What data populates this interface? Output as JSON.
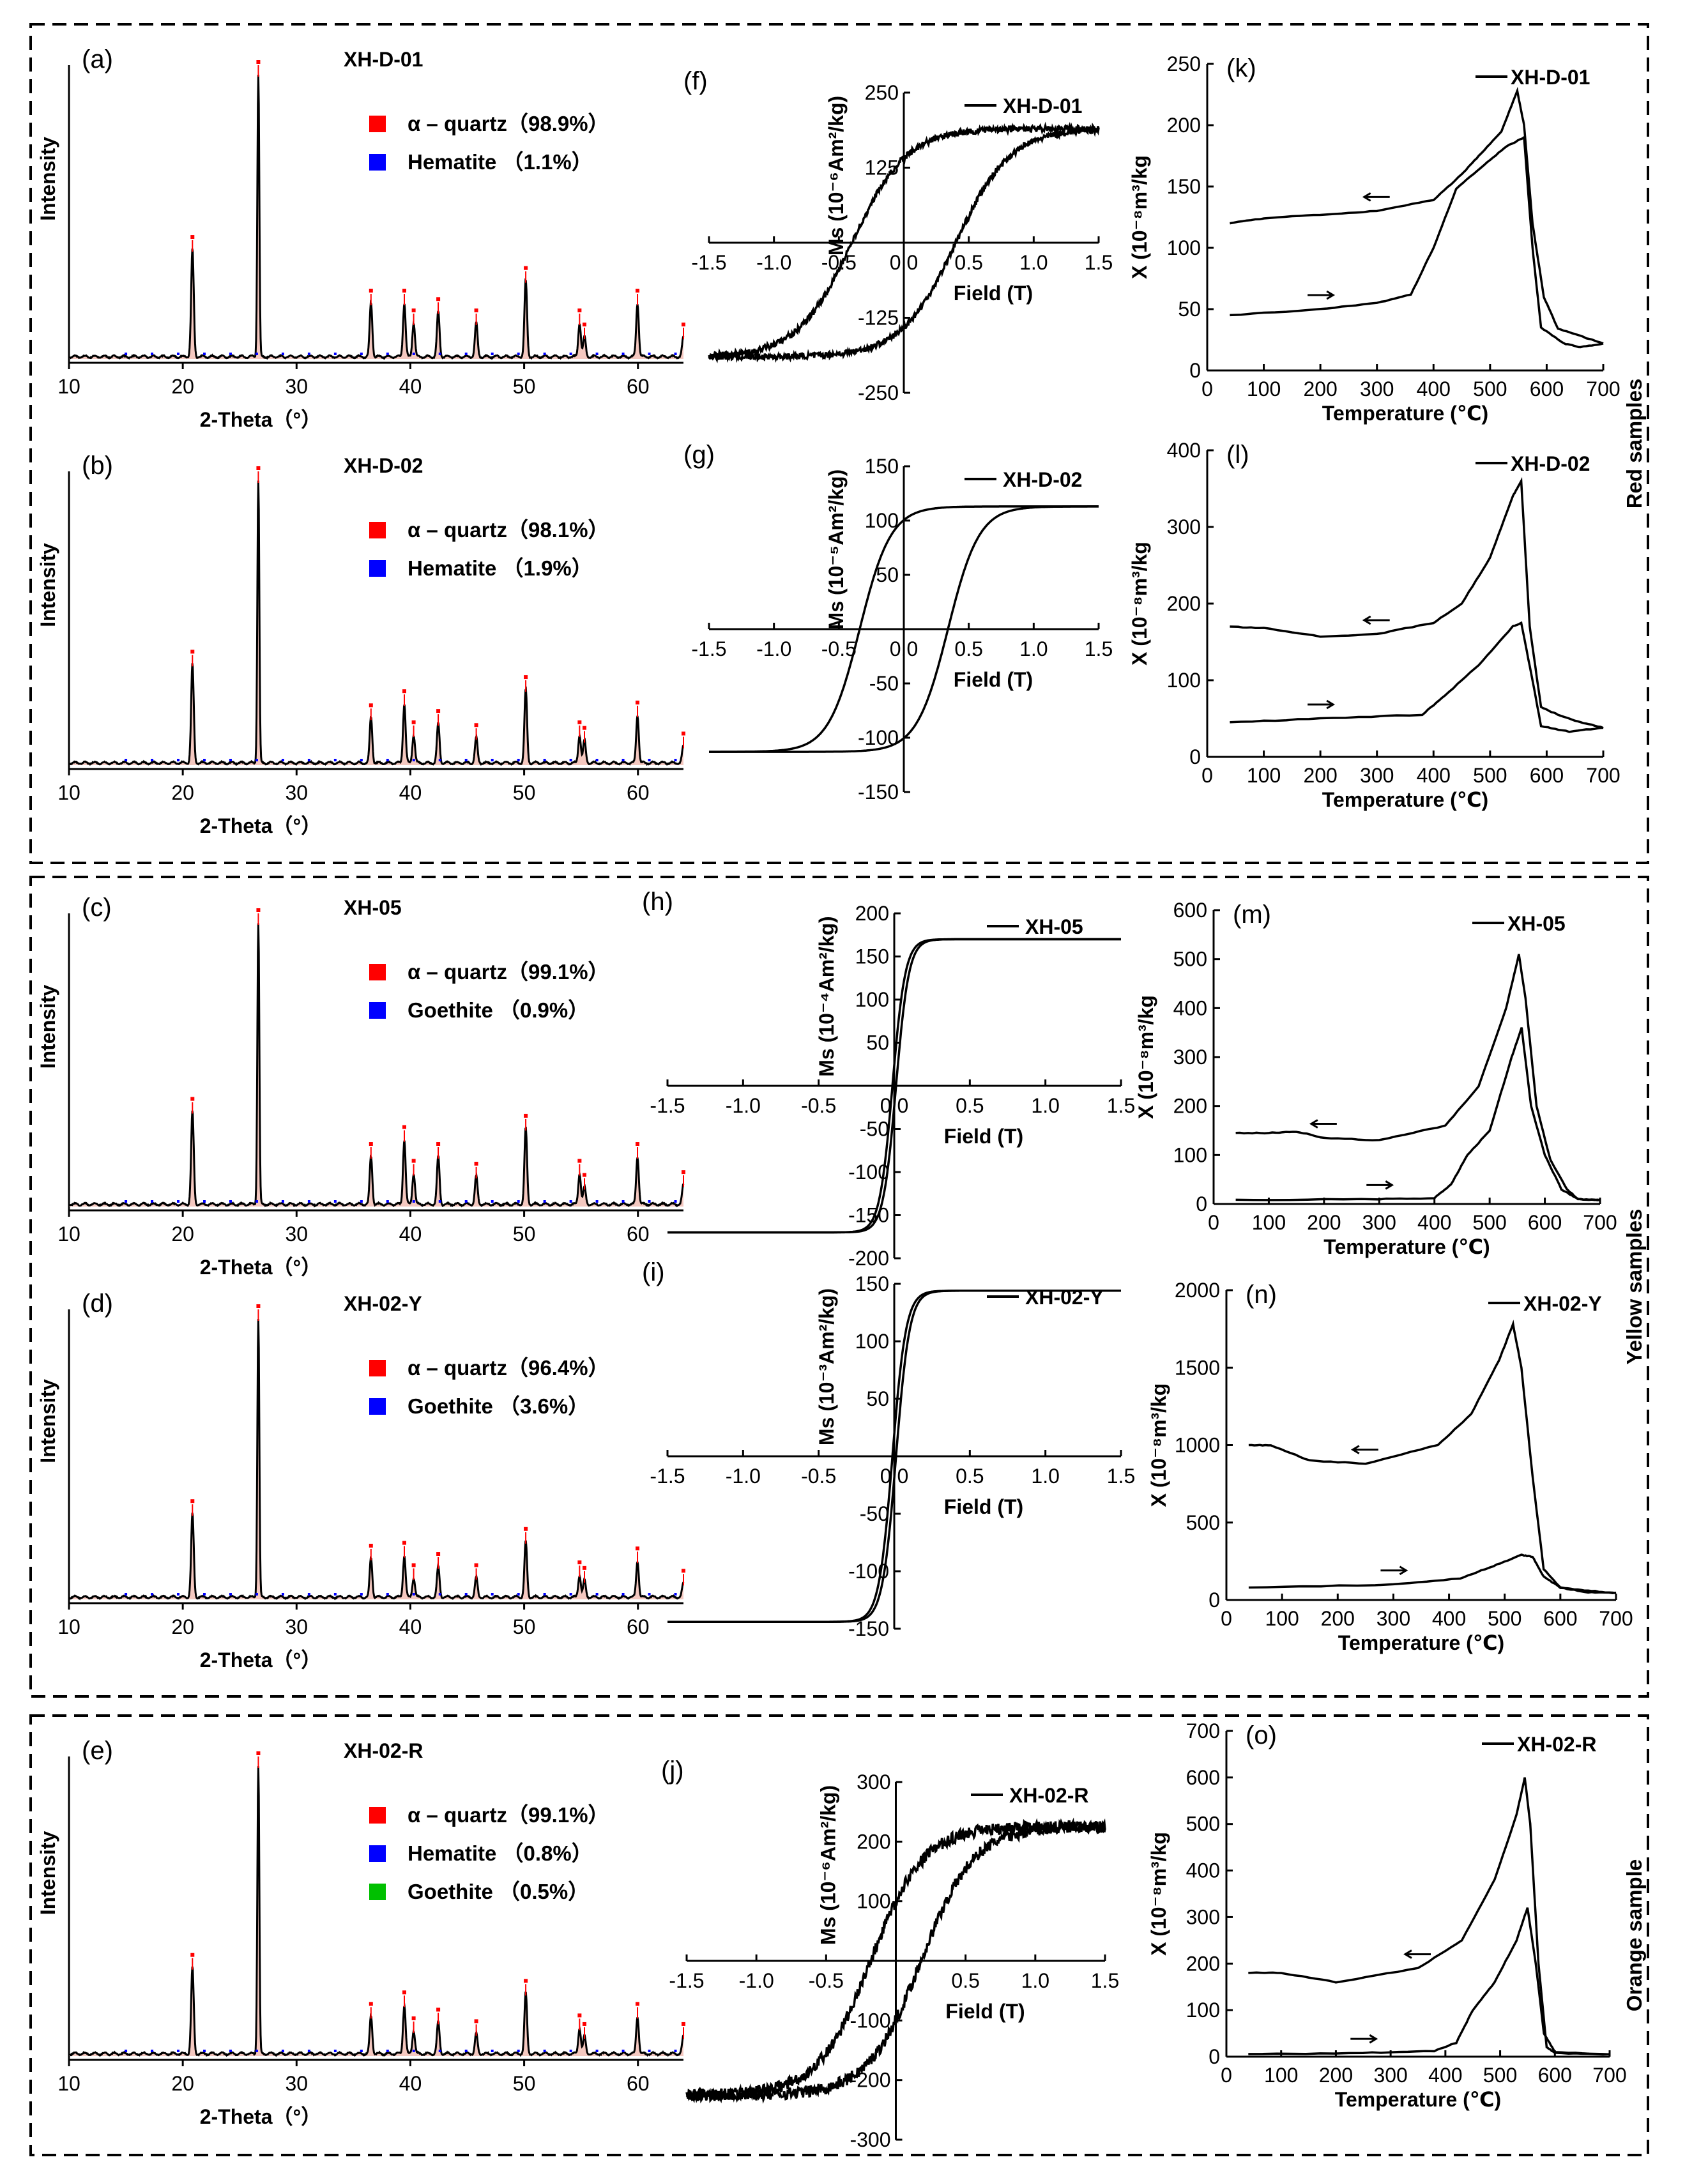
{
  "groups": [
    {
      "id": "red",
      "label": "Red samples"
    },
    {
      "id": "yellow",
      "label": "Yellow samples"
    },
    {
      "id": "orange",
      "label": "Orange sample"
    }
  ],
  "colors": {
    "quartz": "#ff0000",
    "hematite": "#0000ff",
    "goethite_green": "#00c000",
    "goethite_blue": "#0000ff",
    "curve": "#000000",
    "fill": "#f4c8c0"
  },
  "chart_data": [
    {
      "type": "line",
      "panel": "(a)",
      "kind": "xrd",
      "title": "XH-D-01",
      "xlabel": "2-Theta（°）",
      "ylabel": "Intensity",
      "xlim": [
        10,
        64
      ],
      "x_ticks": [
        "10",
        "20",
        "30",
        "40",
        "50",
        "60"
      ],
      "peaks": [
        {
          "x": 20.85,
          "h": 0.38
        },
        {
          "x": 26.64,
          "h": 1.0
        },
        {
          "x": 36.54,
          "h": 0.19
        },
        {
          "x": 39.47,
          "h": 0.19
        },
        {
          "x": 40.29,
          "h": 0.12
        },
        {
          "x": 42.45,
          "h": 0.16
        },
        {
          "x": 45.79,
          "h": 0.12
        },
        {
          "x": 50.14,
          "h": 0.27
        },
        {
          "x": 54.87,
          "h": 0.12
        },
        {
          "x": 55.3,
          "h": 0.07
        },
        {
          "x": 59.96,
          "h": 0.19
        },
        {
          "x": 64.0,
          "h": 0.07
        }
      ],
      "legend": [
        {
          "label": "α – quartz（98.9%）",
          "color": "#ff0000"
        },
        {
          "label": "Hematite （1.1%）",
          "color": "#0000ff"
        }
      ]
    },
    {
      "type": "line",
      "panel": "(b)",
      "kind": "xrd",
      "title": "XH-D-02",
      "xlabel": "2-Theta（°）",
      "ylabel": "Intensity",
      "xlim": [
        10,
        64
      ],
      "x_ticks": [
        "10",
        "20",
        "30",
        "40",
        "50",
        "60"
      ],
      "peaks": [
        {
          "x": 20.85,
          "h": 0.35
        },
        {
          "x": 26.64,
          "h": 1.0
        },
        {
          "x": 36.54,
          "h": 0.16
        },
        {
          "x": 39.47,
          "h": 0.21
        },
        {
          "x": 40.29,
          "h": 0.1
        },
        {
          "x": 42.45,
          "h": 0.14
        },
        {
          "x": 45.79,
          "h": 0.09
        },
        {
          "x": 50.14,
          "h": 0.26
        },
        {
          "x": 54.87,
          "h": 0.1
        },
        {
          "x": 55.3,
          "h": 0.08
        },
        {
          "x": 59.96,
          "h": 0.17
        },
        {
          "x": 64.0,
          "h": 0.06
        }
      ],
      "legend": [
        {
          "label": "α – quartz（98.1%）",
          "color": "#ff0000"
        },
        {
          "label": "Hematite （1.9%）",
          "color": "#0000ff"
        }
      ]
    },
    {
      "type": "line",
      "panel": "(c)",
      "kind": "xrd",
      "title": "XH-05",
      "xlabel": "2-Theta（°）",
      "ylabel": "Intensity",
      "xlim": [
        10,
        64
      ],
      "x_ticks": [
        "10",
        "20",
        "30",
        "40",
        "50",
        "60"
      ],
      "peaks": [
        {
          "x": 20.85,
          "h": 0.33
        },
        {
          "x": 26.64,
          "h": 1.0
        },
        {
          "x": 36.54,
          "h": 0.17
        },
        {
          "x": 39.47,
          "h": 0.23
        },
        {
          "x": 40.29,
          "h": 0.11
        },
        {
          "x": 42.45,
          "h": 0.17
        },
        {
          "x": 45.79,
          "h": 0.1
        },
        {
          "x": 50.14,
          "h": 0.27
        },
        {
          "x": 54.87,
          "h": 0.11
        },
        {
          "x": 55.3,
          "h": 0.06
        },
        {
          "x": 59.96,
          "h": 0.17
        },
        {
          "x": 64.0,
          "h": 0.07
        }
      ],
      "legend": [
        {
          "label": "α – quartz（99.1%）",
          "color": "#ff0000"
        },
        {
          "label": "Goethite （0.9%）",
          "color": "#0000ff"
        }
      ]
    },
    {
      "type": "line",
      "panel": "(d)",
      "kind": "xrd",
      "title": "XH-02-Y",
      "xlabel": "2-Theta（°）",
      "ylabel": "Intensity",
      "xlim": [
        10,
        64
      ],
      "x_ticks": [
        "10",
        "20",
        "30",
        "40",
        "50",
        "60"
      ],
      "peaks": [
        {
          "x": 20.85,
          "h": 0.3
        },
        {
          "x": 26.64,
          "h": 1.0
        },
        {
          "x": 36.54,
          "h": 0.14
        },
        {
          "x": 39.47,
          "h": 0.15
        },
        {
          "x": 40.29,
          "h": 0.07
        },
        {
          "x": 42.45,
          "h": 0.11
        },
        {
          "x": 45.79,
          "h": 0.07
        },
        {
          "x": 50.14,
          "h": 0.2
        },
        {
          "x": 54.87,
          "h": 0.08
        },
        {
          "x": 55.3,
          "h": 0.06
        },
        {
          "x": 59.96,
          "h": 0.13
        },
        {
          "x": 64.0,
          "h": 0.05
        }
      ],
      "legend": [
        {
          "label": "α – quartz（96.4%）",
          "color": "#ff0000"
        },
        {
          "label": "Goethite （3.6%）",
          "color": "#0000ff"
        }
      ]
    },
    {
      "type": "line",
      "panel": "(e)",
      "kind": "xrd",
      "title": "XH-02-R",
      "xlabel": "2-Theta（°）",
      "ylabel": "Intensity",
      "xlim": [
        10,
        64
      ],
      "x_ticks": [
        "10",
        "20",
        "30",
        "40",
        "50",
        "60"
      ],
      "peaks": [
        {
          "x": 20.85,
          "h": 0.3
        },
        {
          "x": 26.64,
          "h": 1.0
        },
        {
          "x": 36.54,
          "h": 0.13
        },
        {
          "x": 39.47,
          "h": 0.17
        },
        {
          "x": 40.29,
          "h": 0.08
        },
        {
          "x": 42.45,
          "h": 0.11
        },
        {
          "x": 45.79,
          "h": 0.07
        },
        {
          "x": 50.14,
          "h": 0.21
        },
        {
          "x": 54.87,
          "h": 0.09
        },
        {
          "x": 55.3,
          "h": 0.06
        },
        {
          "x": 59.96,
          "h": 0.13
        },
        {
          "x": 64.0,
          "h": 0.06
        }
      ],
      "legend": [
        {
          "label": "α – quartz（99.1%）",
          "color": "#ff0000"
        },
        {
          "label": "Hematite （0.8%）",
          "color": "#0000ff"
        },
        {
          "label": "Goethite （0.5%）",
          "color": "#00c000"
        }
      ]
    },
    {
      "type": "line",
      "panel": "(f)",
      "kind": "hyst",
      "title": "XH-D-01",
      "xlabel": "Field (T)",
      "ylabel": "Ms (10⁻⁶Am²/kg)",
      "xlim": [
        -1.5,
        1.5
      ],
      "ylim": [
        -250,
        250
      ],
      "ms": 190,
      "hc": 0.4,
      "w": 0.42,
      "noise": 5,
      "x_ticks": [
        "-1.5",
        "-1.0",
        "-0.5",
        "0.0",
        "0.5",
        "1.0",
        "1.5"
      ],
      "y_ticks": [
        "250",
        "125",
        "-125",
        "-250"
      ],
      "hide_x0": false
    },
    {
      "type": "line",
      "panel": "(g)",
      "kind": "hyst",
      "title": "XH-D-02",
      "xlabel": "Field (T)",
      "ylabel": "Ms (10⁻⁵Am²/kg)",
      "xlim": [
        -1.5,
        1.5
      ],
      "ylim": [
        -150,
        150
      ],
      "ms": 113,
      "hc": 0.34,
      "w": 0.24,
      "noise": 0,
      "x_ticks": [
        "-1.5",
        "-1.0",
        "-0.5",
        "0.0",
        "0.5",
        "1.0",
        "1.5"
      ],
      "y_ticks": [
        "150",
        "100",
        "50",
        "-50",
        "-100",
        "-150"
      ],
      "hide_x0": false
    },
    {
      "type": "line",
      "panel": "(h)",
      "kind": "hyst",
      "title": "XH-05",
      "xlabel": "Field (T)",
      "ylabel": "Ms (10⁻⁴Am²/kg)",
      "xlim": [
        -1.5,
        1.5
      ],
      "ylim": [
        -200,
        200
      ],
      "ms": 170,
      "hc": 0.012,
      "w": 0.085,
      "noise": 0,
      "x_ticks": [
        "-1.5",
        "-1.0",
        "-0.5",
        "0.0",
        "0.5",
        "1.0",
        "1.5"
      ],
      "y_ticks": [
        "200",
        "150",
        "100",
        "50",
        "-50",
        "-100",
        "-150",
        "-200"
      ],
      "hide_x0": false
    },
    {
      "type": "line",
      "panel": "(i)",
      "kind": "hyst",
      "title": "XH-02-Y",
      "xlabel": "Field (T)",
      "ylabel": "Ms (10⁻³Am²/kg)",
      "xlim": [
        -1.5,
        1.5
      ],
      "ylim": [
        -150,
        150
      ],
      "ms": 144,
      "hc": 0.012,
      "w": 0.09,
      "noise": 0,
      "x_ticks": [
        "-1.5",
        "-1.0",
        "-0.5",
        "0.0",
        "0.5",
        "1.0",
        "1.5"
      ],
      "y_ticks": [
        "150",
        "100",
        "50",
        "-50",
        "-100",
        "-150"
      ],
      "hide_x0": false
    },
    {
      "type": "line",
      "panel": "(j)",
      "kind": "hyst",
      "title": "XH-02-R",
      "xlabel": "Field (T)",
      "ylabel": "Ms (10⁻⁶Am²/kg)",
      "xlim": [
        -1.5,
        1.5
      ],
      "ylim": [
        -300,
        300
      ],
      "ms": 225,
      "hc": 0.18,
      "w": 0.38,
      "noise": 10,
      "x_ticks": [
        "-1.5",
        "-1.0",
        "-0.5",
        "0.5",
        "1.0",
        "1.5"
      ],
      "y_ticks": [
        "300",
        "200",
        "100",
        "-100",
        "-200",
        "-300"
      ],
      "hide_x0": true
    },
    {
      "type": "line",
      "panel": "(k)",
      "kind": "thermo",
      "title": "XH-D-01",
      "xlabel": "Temperature (℃)",
      "ylabel": "X (10⁻⁸m³/kg",
      "xlim": [
        0,
        700
      ],
      "ylim": [
        0,
        250
      ],
      "x_ticks": [
        "0",
        "100",
        "200",
        "300",
        "400",
        "500",
        "600",
        "700"
      ],
      "y_ticks": [
        "0",
        "50",
        "100",
        "150",
        "200",
        "250"
      ],
      "heating": [
        [
          40,
          45
        ],
        [
          200,
          50
        ],
        [
          300,
          55
        ],
        [
          360,
          62
        ],
        [
          400,
          100
        ],
        [
          440,
          148
        ],
        [
          490,
          168
        ],
        [
          530,
          183
        ],
        [
          560,
          190
        ],
        [
          575,
          100
        ],
        [
          590,
          35
        ],
        [
          630,
          22
        ],
        [
          660,
          19
        ],
        [
          700,
          22
        ]
      ],
      "cooling": [
        [
          700,
          22
        ],
        [
          660,
          28
        ],
        [
          620,
          34
        ],
        [
          595,
          60
        ],
        [
          575,
          120
        ],
        [
          560,
          200
        ],
        [
          548,
          228
        ],
        [
          520,
          195
        ],
        [
          480,
          175
        ],
        [
          450,
          160
        ],
        [
          400,
          139
        ],
        [
          300,
          130
        ],
        [
          200,
          127
        ],
        [
          100,
          124
        ],
        [
          40,
          120
        ]
      ]
    },
    {
      "type": "line",
      "panel": "(l)",
      "kind": "thermo",
      "title": "XH-D-02",
      "xlabel": "Temperature (℃)",
      "ylabel": "X (10⁻⁸m³/kg",
      "xlim": [
        0,
        700
      ],
      "ylim": [
        0,
        400
      ],
      "x_ticks": [
        "0",
        "100",
        "200",
        "300",
        "400",
        "500",
        "600",
        "700"
      ],
      "y_ticks": [
        "0",
        "100",
        "200",
        "300",
        "400"
      ],
      "heating": [
        [
          40,
          45
        ],
        [
          200,
          50
        ],
        [
          380,
          55
        ],
        [
          420,
          80
        ],
        [
          480,
          120
        ],
        [
          540,
          170
        ],
        [
          555,
          175
        ],
        [
          575,
          100
        ],
        [
          590,
          40
        ],
        [
          640,
          33
        ],
        [
          700,
          38
        ]
      ],
      "cooling": [
        [
          700,
          38
        ],
        [
          660,
          45
        ],
        [
          620,
          55
        ],
        [
          590,
          65
        ],
        [
          570,
          170
        ],
        [
          555,
          360
        ],
        [
          540,
          340
        ],
        [
          500,
          260
        ],
        [
          450,
          200
        ],
        [
          400,
          175
        ],
        [
          300,
          160
        ],
        [
          200,
          157
        ],
        [
          100,
          168
        ],
        [
          40,
          170
        ]
      ]
    },
    {
      "type": "line",
      "panel": "(m)",
      "kind": "thermo",
      "title": "XH-05",
      "xlabel": "Temperature (℃)",
      "ylabel": "X (10⁻⁸m³/kg",
      "xlim": [
        0,
        700
      ],
      "ylim": [
        0,
        600
      ],
      "x_ticks": [
        "0",
        "100",
        "200",
        "300",
        "400",
        "500",
        "600",
        "700"
      ],
      "y_ticks": [
        "0",
        "100",
        "200",
        "300",
        "400",
        "500",
        "600"
      ],
      "heating": [
        [
          40,
          8
        ],
        [
          300,
          10
        ],
        [
          400,
          12
        ],
        [
          430,
          40
        ],
        [
          460,
          100
        ],
        [
          500,
          150
        ],
        [
          540,
          300
        ],
        [
          558,
          360
        ],
        [
          575,
          200
        ],
        [
          600,
          100
        ],
        [
          630,
          30
        ],
        [
          660,
          10
        ],
        [
          700,
          8
        ]
      ],
      "cooling": [
        [
          700,
          8
        ],
        [
          660,
          10
        ],
        [
          640,
          30
        ],
        [
          610,
          90
        ],
        [
          585,
          200
        ],
        [
          565,
          420
        ],
        [
          553,
          510
        ],
        [
          530,
          400
        ],
        [
          480,
          240
        ],
        [
          420,
          160
        ],
        [
          300,
          130
        ],
        [
          200,
          135
        ],
        [
          150,
          148
        ],
        [
          100,
          145
        ],
        [
          40,
          145
        ]
      ]
    },
    {
      "type": "line",
      "panel": "(n)",
      "kind": "thermo",
      "title": "XH-02-Y",
      "xlabel": "Temperature (℃)",
      "ylabel": "X (10⁻⁸m³/kg",
      "xlim": [
        0,
        700
      ],
      "ylim": [
        0,
        2000
      ],
      "x_ticks": [
        "0",
        "100",
        "200",
        "300",
        "400",
        "500",
        "600",
        "700"
      ],
      "y_ticks": [
        "0",
        "500",
        "1000",
        "1500",
        "2000"
      ],
      "heating": [
        [
          40,
          80
        ],
        [
          300,
          100
        ],
        [
          420,
          140
        ],
        [
          480,
          220
        ],
        [
          530,
          290
        ],
        [
          550,
          280
        ],
        [
          570,
          150
        ],
        [
          600,
          80
        ],
        [
          650,
          60
        ],
        [
          700,
          45
        ]
      ],
      "cooling": [
        [
          700,
          45
        ],
        [
          650,
          50
        ],
        [
          600,
          80
        ],
        [
          570,
          200
        ],
        [
          550,
          800
        ],
        [
          530,
          1500
        ],
        [
          515,
          1780
        ],
        [
          490,
          1550
        ],
        [
          440,
          1200
        ],
        [
          380,
          1000
        ],
        [
          250,
          880
        ],
        [
          150,
          900
        ],
        [
          80,
          1000
        ],
        [
          40,
          1000
        ]
      ]
    },
    {
      "type": "line",
      "panel": "(o)",
      "kind": "thermo",
      "title": "XH-02-R",
      "xlabel": "Temperature (℃)",
      "ylabel": "X (10⁻⁸m³/kg",
      "xlim": [
        0,
        700
      ],
      "ylim": [
        0,
        700
      ],
      "x_ticks": [
        "0",
        "100",
        "200",
        "300",
        "400",
        "500",
        "600",
        "700"
      ],
      "y_ticks": [
        "0",
        "100",
        "200",
        "300",
        "400",
        "500",
        "600",
        "700"
      ],
      "heating": [
        [
          40,
          5
        ],
        [
          250,
          8
        ],
        [
          380,
          12
        ],
        [
          420,
          30
        ],
        [
          450,
          100
        ],
        [
          490,
          160
        ],
        [
          530,
          250
        ],
        [
          550,
          320
        ],
        [
          565,
          200
        ],
        [
          580,
          50
        ],
        [
          600,
          10
        ],
        [
          700,
          5
        ]
      ],
      "cooling": [
        [
          700,
          5
        ],
        [
          600,
          8
        ],
        [
          585,
          20
        ],
        [
          570,
          200
        ],
        [
          555,
          500
        ],
        [
          545,
          600
        ],
        [
          530,
          520
        ],
        [
          490,
          380
        ],
        [
          430,
          250
        ],
        [
          350,
          190
        ],
        [
          200,
          160
        ],
        [
          100,
          180
        ],
        [
          40,
          180
        ]
      ]
    }
  ]
}
